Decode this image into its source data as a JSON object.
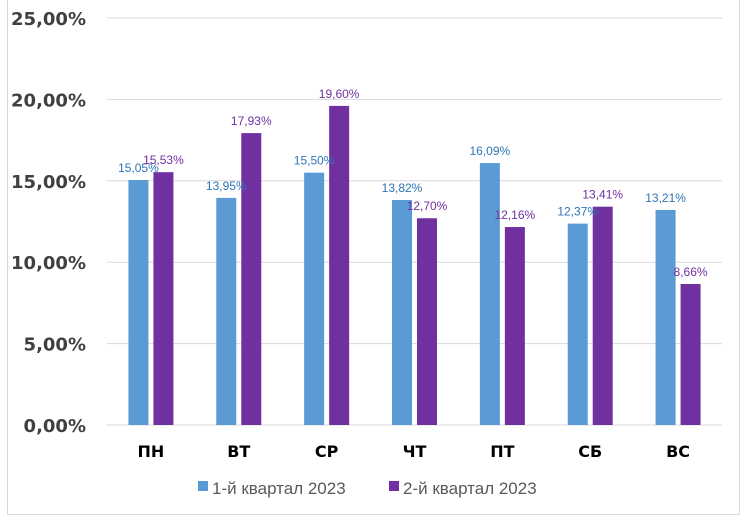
{
  "chart_data": {
    "type": "bar",
    "title": "",
    "xlabel": "",
    "ylabel": "",
    "ylim": [
      0,
      25
    ],
    "yticks": [
      0,
      5,
      10,
      15,
      20,
      25
    ],
    "ytick_labels": [
      "0,00%",
      "5,00%",
      "10,00%",
      "15,00%",
      "20,00%",
      "25,00%"
    ],
    "grid": true,
    "legend_position": "bottom",
    "categories": [
      "ПН",
      "ВТ",
      "СР",
      "ЧТ",
      "ПТ",
      "СБ",
      "ВС"
    ],
    "series": [
      {
        "name": "1-й квартал 2023",
        "color": "#5B9BD5",
        "label_color": "#2E75B6",
        "values": [
          15.05,
          13.95,
          15.5,
          13.82,
          16.09,
          12.37,
          13.21
        ],
        "labels": [
          "15,05%",
          "13,95%",
          "15,50%",
          "13,82%",
          "16,09%",
          "12,37%",
          "13,21%"
        ]
      },
      {
        "name": "2-й квартал 2023",
        "color": "#7030A0",
        "label_color": "#7030A0",
        "values": [
          15.53,
          17.93,
          19.6,
          12.7,
          12.16,
          13.41,
          8.66
        ],
        "labels": [
          "15,53%",
          "17,93%",
          "19,60%",
          "12,70%",
          "12,16%",
          "13,41%",
          "8,66%"
        ]
      }
    ]
  }
}
